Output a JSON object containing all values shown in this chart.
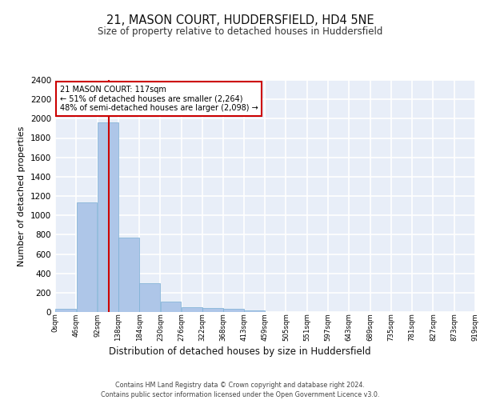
{
  "title": "21, MASON COURT, HUDDERSFIELD, HD4 5NE",
  "subtitle": "Size of property relative to detached houses in Huddersfield",
  "xlabel": "Distribution of detached houses by size in Huddersfield",
  "ylabel": "Number of detached properties",
  "footer_line1": "Contains HM Land Registry data © Crown copyright and database right 2024.",
  "footer_line2": "Contains public sector information licensed under the Open Government Licence v3.0.",
  "property_size": 117,
  "property_label": "21 MASON COURT: 117sqm",
  "annotation_line1": "← 51% of detached houses are smaller (2,264)",
  "annotation_line2": "48% of semi-detached houses are larger (2,098) →",
  "bar_color": "#aec6e8",
  "bar_edge_color": "#7aafd4",
  "vline_color": "#cc0000",
  "annotation_box_color": "#cc0000",
  "bg_color": "#e8eef8",
  "grid_color": "#ffffff",
  "bin_edges": [
    0,
    46,
    92,
    138,
    184,
    230,
    276,
    322,
    368,
    413,
    459,
    505,
    551,
    597,
    643,
    689,
    735,
    781,
    827,
    873,
    919
  ],
  "bin_labels": [
    "0sqm",
    "46sqm",
    "92sqm",
    "138sqm",
    "184sqm",
    "230sqm",
    "276sqm",
    "322sqm",
    "368sqm",
    "413sqm",
    "459sqm",
    "505sqm",
    "551sqm",
    "597sqm",
    "643sqm",
    "689sqm",
    "735sqm",
    "781sqm",
    "827sqm",
    "873sqm",
    "919sqm"
  ],
  "bar_heights": [
    35,
    1135,
    1960,
    770,
    300,
    105,
    50,
    40,
    30,
    15,
    0,
    0,
    0,
    0,
    0,
    0,
    0,
    0,
    0,
    0
  ],
  "ylim": [
    0,
    2400
  ],
  "yticks": [
    0,
    200,
    400,
    600,
    800,
    1000,
    1200,
    1400,
    1600,
    1800,
    2000,
    2200,
    2400
  ]
}
